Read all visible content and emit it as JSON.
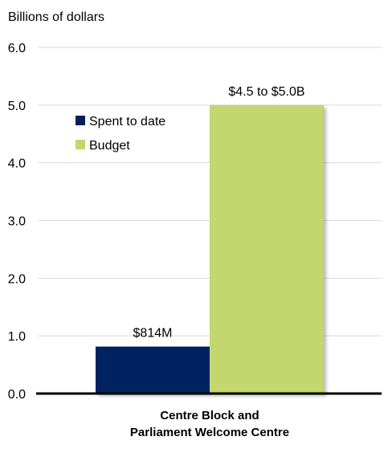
{
  "chart_data": {
    "type": "bar",
    "ylabel": "Billions of dollars",
    "ylim": [
      0,
      6
    ],
    "ytick_labels": [
      "0.0",
      "1.0",
      "2.0",
      "3.0",
      "4.0",
      "5.0",
      "6.0"
    ],
    "grid": true,
    "legend_position": "upper-left-inside",
    "category_label_lines": [
      "Centre Block and",
      "Parliament Welcome Centre"
    ],
    "series": [
      {
        "name": "Spent to date",
        "value": 0.814,
        "data_label": "$814M",
        "color": "#002060"
      },
      {
        "name": "Budget",
        "value": 5.0,
        "data_label": "$4.5 to $5.0B",
        "color": "#c3d66f"
      }
    ]
  }
}
